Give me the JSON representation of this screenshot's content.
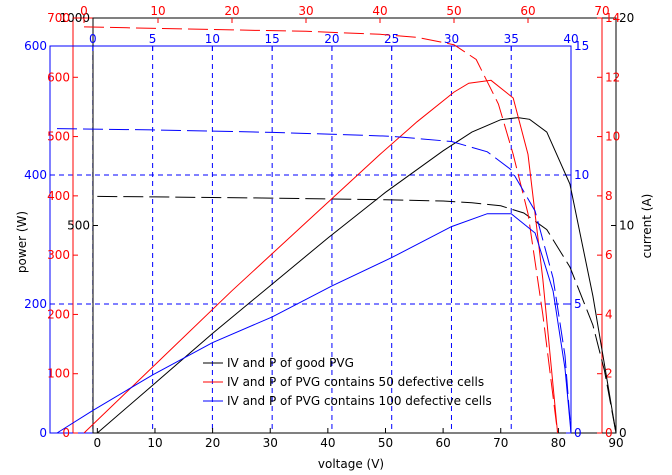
{
  "chart_data": {
    "type": "line",
    "title": "",
    "xlabel": "voltage (V)",
    "ylabel": "power (W)",
    "ylabel_right": "current (A)",
    "grid": true,
    "legend_position": "bottom-center",
    "axes": [
      {
        "id": "k_bottom",
        "side": "bottom",
        "color": "#000000",
        "range": [
          -7,
          90
        ],
        "ticks": [
          0,
          10,
          20,
          30,
          40,
          50,
          60,
          70,
          80,
          90
        ]
      },
      {
        "id": "k_left",
        "side": "left",
        "color": "#000000",
        "range": [
          0,
          1000
        ],
        "ticks": [
          500,
          1000
        ]
      },
      {
        "id": "k_right",
        "side": "right",
        "color": "#000000",
        "range": [
          0,
          20
        ],
        "ticks": [
          0,
          10,
          20
        ]
      },
      {
        "id": "r_top",
        "side": "top",
        "color": "#ff0000",
        "range": [
          -5,
          70
        ],
        "ticks": [
          0,
          10,
          20,
          30,
          40,
          50,
          60,
          70
        ]
      },
      {
        "id": "r_left",
        "side": "left",
        "color": "#ff0000",
        "range": [
          0,
          700
        ],
        "ticks": [
          0,
          100,
          200,
          300,
          400,
          500,
          600,
          700
        ]
      },
      {
        "id": "r_right",
        "side": "right",
        "color": "#ff0000",
        "range": [
          0,
          14
        ],
        "ticks": [
          0,
          2,
          4,
          6,
          8,
          10,
          12,
          14
        ]
      },
      {
        "id": "b_top",
        "side": "top",
        "color": "#0000ff",
        "range": [
          -3,
          40
        ],
        "ticks": [
          0,
          5,
          10,
          15,
          20,
          25,
          30,
          35,
          40
        ]
      },
      {
        "id": "b_left",
        "side": "left",
        "color": "#0000ff",
        "range": [
          0,
          600
        ],
        "ticks": [
          0,
          200,
          400,
          600
        ]
      },
      {
        "id": "b_right",
        "side": "right",
        "color": "#0000ff",
        "range": [
          0,
          15
        ],
        "ticks": [
          0,
          5,
          10,
          15
        ]
      }
    ],
    "series": [
      {
        "name": "IV and P of good PVG",
        "color": "#000000",
        "power": {
          "x": [
            0,
            10,
            20,
            30,
            40,
            50,
            60,
            65,
            70,
            73,
            75,
            78,
            82,
            86,
            90
          ],
          "y": [
            0,
            120,
            240,
            355,
            470,
            580,
            680,
            725,
            755,
            760,
            756,
            725,
            600,
            330,
            0
          ]
        },
        "current": {
          "x": [
            0,
            10,
            20,
            30,
            40,
            50,
            60,
            65,
            70,
            74,
            78,
            82,
            86,
            88,
            90
          ],
          "y": [
            11.4,
            11.38,
            11.35,
            11.32,
            11.28,
            11.24,
            11.18,
            11.1,
            10.95,
            10.6,
            9.8,
            8.0,
            5.2,
            3.0,
            0
          ]
        }
      },
      {
        "name": "IV and P of PVG contains 50 defective cells",
        "color": "#ff0000",
        "power": {
          "x": [
            0,
            10,
            20,
            30,
            40,
            45,
            50,
            52,
            55,
            58,
            60,
            62,
            64
          ],
          "y": [
            0,
            120,
            240,
            355,
            470,
            525,
            575,
            590,
            595,
            565,
            470,
            260,
            0
          ]
        },
        "current": {
          "x": [
            0,
            10,
            20,
            30,
            40,
            45,
            50,
            53,
            56,
            58,
            60,
            62,
            64
          ],
          "y": [
            13.7,
            13.65,
            13.6,
            13.55,
            13.45,
            13.35,
            13.1,
            12.6,
            11.1,
            9.4,
            7.4,
            4.0,
            0
          ]
        }
      },
      {
        "name": "IV and P of PVG contains 100 defective cells",
        "color": "#0000ff",
        "power": {
          "x": [
            -3,
            0,
            5,
            10,
            15,
            20,
            25,
            30,
            33,
            35,
            37,
            38.5,
            39.5,
            40
          ],
          "y": [
            0,
            35,
            90,
            140,
            180,
            228,
            272,
            320,
            340,
            340,
            310,
            220,
            100,
            0
          ]
        },
        "current": {
          "x": [
            -3,
            0,
            5,
            10,
            15,
            20,
            25,
            30,
            33,
            35,
            37,
            38.5,
            39.5,
            40
          ],
          "y": [
            11.8,
            11.78,
            11.75,
            11.7,
            11.65,
            11.58,
            11.5,
            11.3,
            10.9,
            10.2,
            8.6,
            6.0,
            3.0,
            0
          ]
        }
      }
    ]
  }
}
